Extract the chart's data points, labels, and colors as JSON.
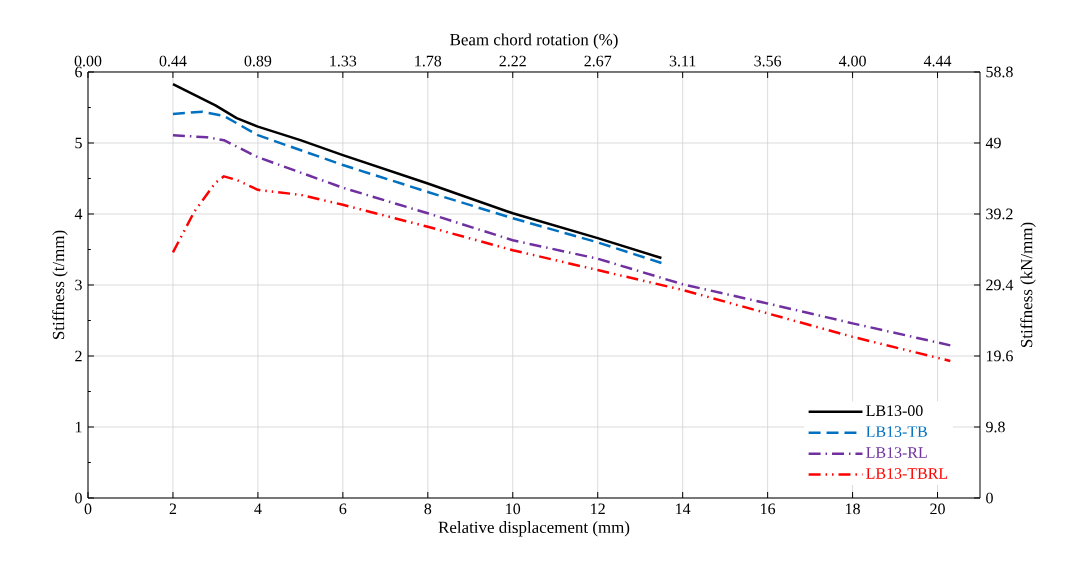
{
  "chart_data": {
    "type": "line",
    "xlabel": "Relative displacement (mm)",
    "ylabel": "Stiffness (t/mm)",
    "y2label": "Stiffness (kN/mm)",
    "x2label": "Beam chord rotation (%)",
    "xlim": [
      0,
      21
    ],
    "xticks": [
      0,
      2,
      4,
      6,
      8,
      10,
      12,
      14,
      16,
      18,
      20
    ],
    "ylim": [
      0,
      6
    ],
    "yticks": [
      0,
      1,
      2,
      3,
      4,
      5,
      6
    ],
    "y2lim": [
      0,
      58.8
    ],
    "y2ticks": [
      0,
      9.8,
      19.6,
      29.4,
      39.2,
      49,
      58.8
    ],
    "x2lim": [
      0,
      4.6667
    ],
    "x2ticks": [
      {
        "value": 0,
        "label": "0.00"
      },
      {
        "value": 0.4444,
        "label": "0.44"
      },
      {
        "value": 0.8889,
        "label": "0.89"
      },
      {
        "value": 1.3333,
        "label": "1.33"
      },
      {
        "value": 1.7778,
        "label": "1.78"
      },
      {
        "value": 2.2222,
        "label": "2.22"
      },
      {
        "value": 2.6667,
        "label": "2.67"
      },
      {
        "value": 3.1111,
        "label": "3.11"
      },
      {
        "value": 3.5556,
        "label": "3.56"
      },
      {
        "value": 4.0,
        "label": "4.00"
      },
      {
        "value": 4.4444,
        "label": "4.44"
      }
    ],
    "grid": true,
    "legend": "bottom right",
    "series": [
      {
        "name": "LB13-00",
        "color": "#000000",
        "line_style": "solid",
        "x": [
          2,
          3,
          3.5,
          4,
          5,
          6,
          8,
          10,
          12,
          13.5
        ],
        "values": [
          5.83,
          5.53,
          5.35,
          5.23,
          5.04,
          4.83,
          4.43,
          4.01,
          3.66,
          3.38
        ]
      },
      {
        "name": "LB13-TB",
        "color": "#0070c0",
        "line_style": "dashed",
        "x": [
          2,
          2.7,
          3.2,
          4,
          6,
          8,
          10,
          12,
          13.5
        ],
        "values": [
          5.41,
          5.44,
          5.38,
          5.11,
          4.69,
          4.31,
          3.94,
          3.6,
          3.31
        ]
      },
      {
        "name": "LB13-RL",
        "color": "#7030a0",
        "line_style": "dashdot",
        "x": [
          2,
          2.8,
          3.2,
          4,
          6,
          8,
          10,
          12,
          14,
          16,
          18,
          20.3
        ],
        "values": [
          5.11,
          5.08,
          5.04,
          4.8,
          4.37,
          4.01,
          3.63,
          3.37,
          3.01,
          2.74,
          2.46,
          2.15
        ]
      },
      {
        "name": "LB13-TBRL",
        "color": "#ff0000",
        "line_style": "dashdotdot",
        "x": [
          2,
          2.5,
          3,
          3.2,
          3.5,
          4,
          5,
          6,
          8,
          10,
          12,
          14,
          16,
          18,
          20.3
        ],
        "values": [
          3.46,
          4.03,
          4.44,
          4.53,
          4.48,
          4.34,
          4.27,
          4.13,
          3.82,
          3.49,
          3.21,
          2.93,
          2.6,
          2.27,
          1.93
        ]
      }
    ]
  }
}
